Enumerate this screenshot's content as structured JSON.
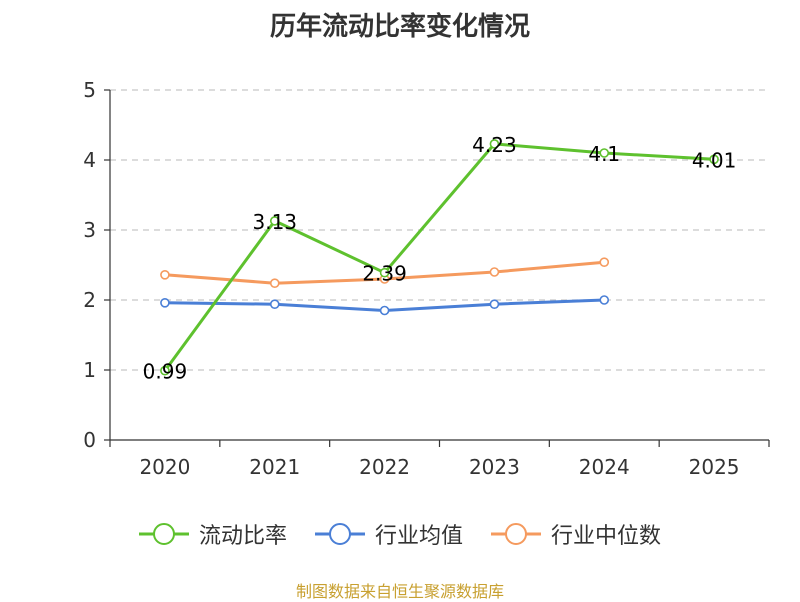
{
  "chart_data": {
    "type": "line",
    "title": "历年流动比率变化情况",
    "categories": [
      "2020",
      "2021",
      "2022",
      "2023",
      "2024",
      "2025"
    ],
    "ylim": [
      0,
      5
    ],
    "yticks": [
      "0",
      "1",
      "2",
      "3",
      "4",
      "5"
    ],
    "grid": true,
    "legend_position": "bottom",
    "series": [
      {
        "name": "流动比率",
        "color": "#5ec12e",
        "show_labels": true,
        "values": [
          0.99,
          3.13,
          2.39,
          4.23,
          4.1,
          4.01
        ],
        "labels": [
          "0.99",
          "3.13",
          "2.39",
          "4.23",
          "4.1",
          "4.01"
        ]
      },
      {
        "name": "行业均值",
        "color": "#4a7fd6",
        "show_labels": false,
        "values": [
          1.96,
          1.94,
          1.85,
          1.94,
          2.0,
          null
        ]
      },
      {
        "name": "行业中位数",
        "color": "#f59a5e",
        "show_labels": false,
        "values": [
          2.36,
          2.24,
          2.3,
          2.4,
          2.54,
          null
        ]
      }
    ]
  },
  "source": {
    "text": "制图数据来自恒生聚源数据库",
    "color": "#c8a030"
  }
}
